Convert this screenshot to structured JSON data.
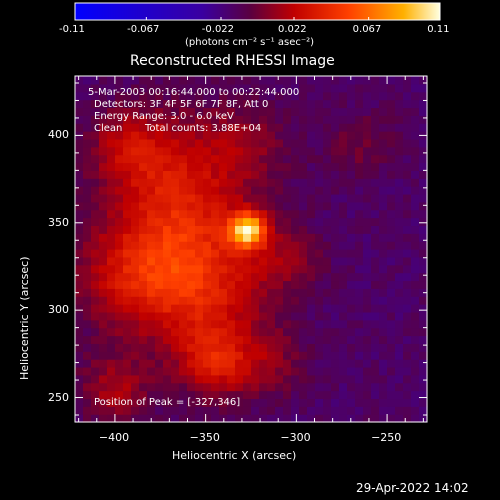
{
  "colorbar": {
    "tick_labels": [
      "-0.11",
      "-0.067",
      "-0.022",
      "0.022",
      "0.067",
      "0.11"
    ],
    "tick_values": [
      -0.11,
      -0.067,
      -0.022,
      0.022,
      0.067,
      0.11
    ],
    "units": "(photons cm⁻² s⁻¹ asec⁻²)",
    "range": [
      -0.11,
      0.11
    ]
  },
  "info": {
    "time_range": "5-Mar-2003 00:16:44.000 to 00:22:44.000",
    "detectors": "Detectors: 3F 4F 5F 6F 7F 8F, Att 0",
    "energy": "Energy Range: 3.0 - 6.0 keV",
    "method": "Clean",
    "total_counts": "Total counts: 3.88E+04",
    "peak": "Position of Peak = [-327,346]"
  },
  "footer": {
    "timestamp": "29-Apr-2022 14:02"
  },
  "colors": {
    "background": "#000000",
    "axes": "#ffffff",
    "colormap": [
      "#0000ff",
      "#3a00a0",
      "#4a1070",
      "#b00000",
      "#ff3000",
      "#ffb000",
      "#ffffd0"
    ]
  },
  "chart_data": {
    "type": "heatmap",
    "title": "Reconstructed RHESSI Image",
    "xlabel": "Heliocentric X (arcsec)",
    "ylabel": "Heliocentric Y (arcsec)",
    "xlim": [
      -422,
      -228
    ],
    "ylim": [
      236,
      434
    ],
    "x_ticks": [
      -400,
      -350,
      -300,
      -250
    ],
    "x_tick_labels": [
      "−400",
      "−350",
      "−300",
      "−250"
    ],
    "y_ticks": [
      250,
      300,
      350,
      400
    ],
    "y_tick_labels": [
      "250",
      "300",
      "350",
      "400"
    ],
    "peak": {
      "x": -327,
      "y": 346,
      "value": 0.11
    },
    "background_value": -0.015,
    "sources": [
      {
        "x": -327,
        "y": 346,
        "sigma": 7,
        "amplitude": 0.1
      },
      {
        "x": -360,
        "y": 345,
        "sigma": 26,
        "amplitude": 0.042
      },
      {
        "x": -390,
        "y": 320,
        "sigma": 22,
        "amplitude": 0.038
      },
      {
        "x": -350,
        "y": 305,
        "sigma": 24,
        "amplitude": 0.036
      },
      {
        "x": -345,
        "y": 270,
        "sigma": 14,
        "amplitude": 0.04
      },
      {
        "x": -375,
        "y": 385,
        "sigma": 22,
        "amplitude": 0.03
      },
      {
        "x": -330,
        "y": 395,
        "sigma": 18,
        "amplitude": 0.022
      },
      {
        "x": -400,
        "y": 255,
        "sigma": 14,
        "amplitude": 0.03
      },
      {
        "x": -305,
        "y": 330,
        "sigma": 14,
        "amplitude": 0.02
      },
      {
        "x": -265,
        "y": 395,
        "sigma": 14,
        "amplitude": 0.015
      },
      {
        "x": -395,
        "y": 395,
        "sigma": 14,
        "amplitude": 0.022
      },
      {
        "x": -315,
        "y": 270,
        "sigma": 14,
        "amplitude": 0.02
      }
    ]
  }
}
